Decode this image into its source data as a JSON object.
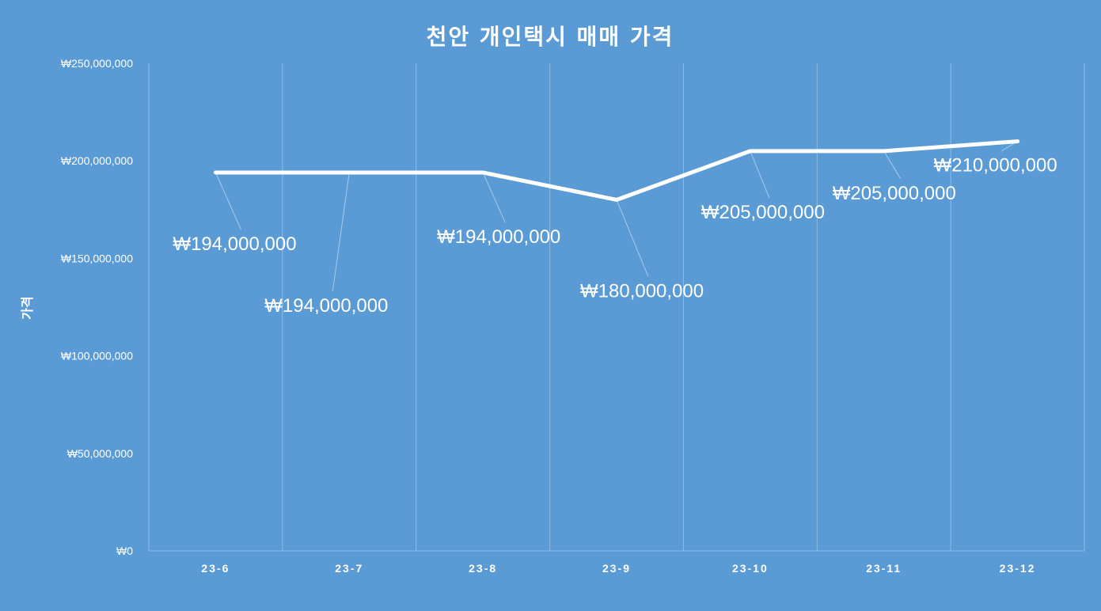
{
  "chart_data": {
    "type": "line",
    "title": "천안 개인택시 매매 가격",
    "xlabel": "",
    "ylabel": "가격",
    "categories": [
      "23-6",
      "23-7",
      "23-8",
      "23-9",
      "23-10",
      "23-11",
      "23-12"
    ],
    "series": [
      {
        "values": [
          194000000,
          194000000,
          194000000,
          180000000,
          205000000,
          205000000,
          210000000
        ],
        "data_labels": [
          "₩194,000,000",
          "₩194,000,000",
          "₩194,000,000",
          "₩180,000,000",
          "₩205,000,000",
          "₩205,000,000",
          "₩210,000,000"
        ]
      }
    ],
    "ylim": [
      0,
      250000000
    ],
    "yticks": [
      0,
      50000000,
      100000000,
      150000000,
      200000000,
      250000000
    ],
    "ytick_labels": [
      "₩0",
      "₩50,000,000",
      "₩100,000,000",
      "₩150,000,000",
      "₩200,000,000",
      "₩250,000,000"
    ],
    "grid": "vertical",
    "legend": "none",
    "colors": {
      "background": "#5b9bd5",
      "line": "#ffffff",
      "text": "#ffffff",
      "grid": "#8fbbe6"
    }
  }
}
